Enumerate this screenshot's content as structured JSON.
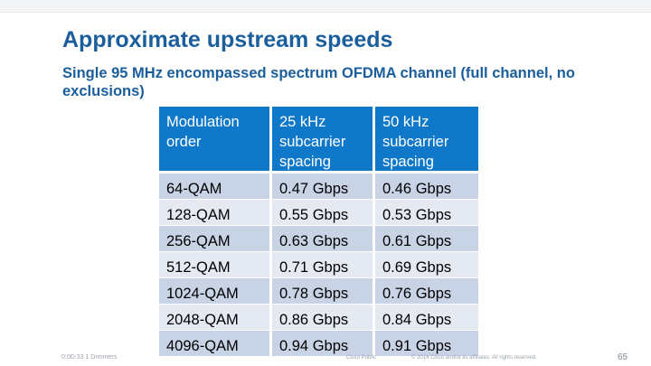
{
  "title": "Approximate upstream speeds",
  "subtitle": "Single 95 MHz encompassed spectrum OFDMA channel (full channel, no exclusions)",
  "table": {
    "headers": [
      "Modulation order",
      "25 kHz subcarrier spacing",
      "50 kHz subcarrier spacing"
    ],
    "rows": [
      [
        "64-QAM",
        "0.47 Gbps",
        "0.46 Gbps"
      ],
      [
        "128-QAM",
        "0.55 Gbps",
        "0.53 Gbps"
      ],
      [
        "256-QAM",
        "0.63 Gbps",
        "0.61 Gbps"
      ],
      [
        "512-QAM",
        "0.71 Gbps",
        "0.69 Gbps"
      ],
      [
        "1024-QAM",
        "0.78 Gbps",
        "0.76 Gbps"
      ],
      [
        "2048-QAM",
        "0.86 Gbps",
        "0.84 Gbps"
      ],
      [
        "4096-QAM",
        "0.94 Gbps",
        "0.91 Gbps"
      ]
    ]
  },
  "footer": {
    "left": "0:0D:33 1 Drmmers",
    "mid": "Cisco Public",
    "copyright": "© 2014 Cisco and/or its affiliates. All rights reserved.",
    "page_number": "65"
  },
  "colors": {
    "title": "#1b5e9c",
    "header_bg": "#0f78c8",
    "row_dark": "#c9d3e6",
    "row_light": "#e4e9f2"
  }
}
